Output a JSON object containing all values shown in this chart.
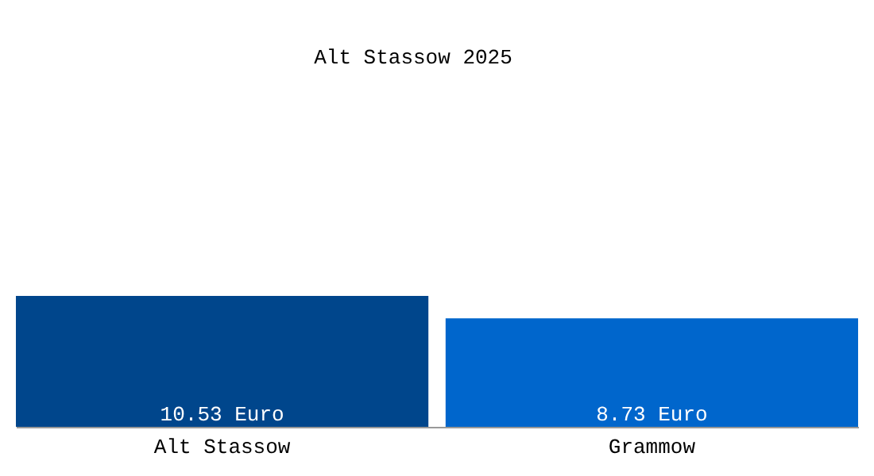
{
  "chart_data": {
    "type": "bar",
    "title": "Alt Stassow 2025",
    "categories": [
      "Alt Stassow",
      "Grammow"
    ],
    "values": [
      10.53,
      8.73
    ],
    "colors": [
      "#00468c",
      "#0066cc"
    ],
    "value_labels": [
      "10.53 Euro",
      "8.73 Euro"
    ],
    "grid": false
  }
}
